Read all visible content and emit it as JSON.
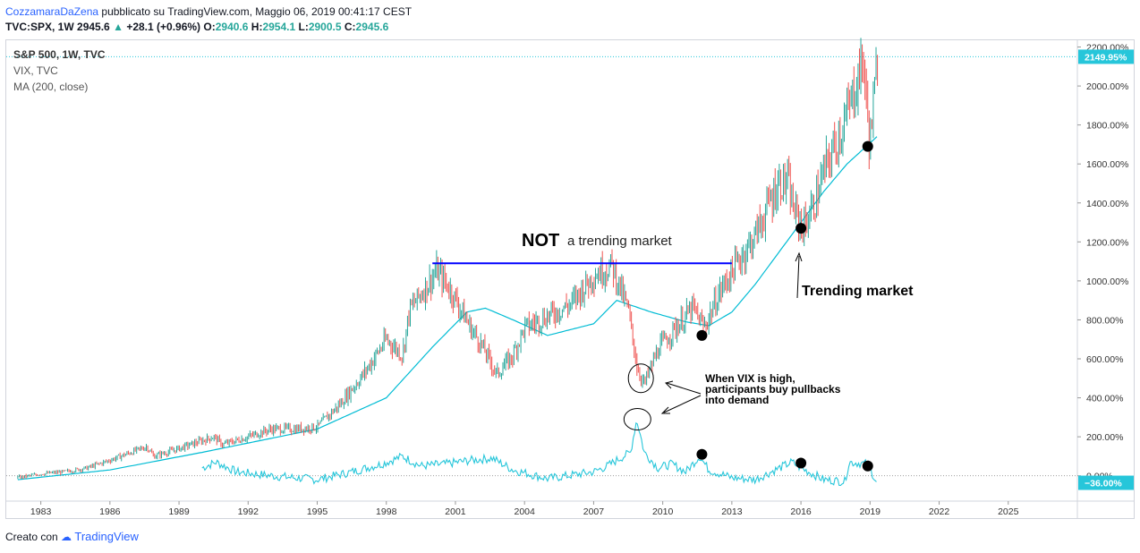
{
  "header": {
    "author": "CozzamaraDaZena",
    "published": "pubblicato su TradingView.com, Maggio 06, 2019 00:41:17 CEST",
    "symbol": "TVC:SPX, 1W",
    "last": "2945.6",
    "change": "+28.1 (+0.96%)",
    "o_label": "O:",
    "o": "2940.6",
    "h_label": "H:",
    "h": "2954.1",
    "l_label": "L:",
    "l": "2900.5",
    "c_label": "C:",
    "c": "2945.6"
  },
  "legend": {
    "line1": "S&P 500, 1W, TVC",
    "line2": "VIX, TVC",
    "line3": "MA (200, close)"
  },
  "footer": {
    "created_with": "Creato con",
    "brand": "TradingView"
  },
  "colors": {
    "candle_up": "#26a69a",
    "candle_down": "#ef5350",
    "ma": "#00bcd4",
    "vix": "#26c6da",
    "resistance": "#0000ff",
    "price_tag": "#26c6da"
  },
  "annotations": {
    "not_bold": "NOT",
    "not_rest": "a trending market",
    "trending": "Trending market",
    "vix_note": [
      "When VIX is high,",
      "participants buy pullbacks",
      "into demand"
    ]
  },
  "chart_data": {
    "type": "line",
    "title": "S&P 500, 1W, TVC",
    "x_range": [
      1981.5,
      2028.0
    ],
    "y_range": [
      -130,
      2230
    ],
    "y_axis_unit": "%",
    "y_ticks": [
      "2200.00%",
      "2000.00%",
      "1800.00%",
      "1600.00%",
      "1400.00%",
      "1200.00%",
      "1000.00%",
      "800.00%",
      "600.00%",
      "400.00%",
      "200.00%",
      "0.00%"
    ],
    "x_ticks": [
      "1983",
      "1986",
      "1989",
      "1992",
      "1995",
      "1998",
      "2001",
      "2004",
      "2007",
      "2010",
      "2013",
      "2016",
      "2019",
      "2022",
      "2025"
    ],
    "price_tags": [
      {
        "label": "2149.95%",
        "value": 2150
      },
      {
        "label": "−36.00%",
        "value": -36
      }
    ],
    "grid": false,
    "series": [
      {
        "name": "S&P 500, 1W, TVC",
        "x": [
          1982.0,
          1983.0,
          1984.0,
          1985.0,
          1986.0,
          1987.6,
          1987.9,
          1989.0,
          1990.5,
          1990.9,
          1992.0,
          1993.0,
          1994.0,
          1995.0,
          1996.0,
          1997.0,
          1998.0,
          1998.7,
          1999.0,
          2000.2,
          2000.8,
          2001.7,
          2002.0,
          2002.8,
          2003.5,
          2004.0,
          2005.0,
          2006.0,
          2007.0,
          2007.8,
          2008.5,
          2008.9,
          2009.2,
          2009.8,
          2010.5,
          2011.3,
          2011.8,
          2012.5,
          2013.0,
          2014.0,
          2015.0,
          2015.4,
          2015.7,
          2016.1,
          2016.6,
          2017.0,
          2018.0,
          2018.7,
          2018.98,
          2019.35
        ],
        "y": [
          -10,
          10,
          20,
          40,
          80,
          150,
          100,
          140,
          200,
          160,
          200,
          240,
          240,
          250,
          370,
          520,
          700,
          620,
          850,
          1050,
          950,
          750,
          700,
          520,
          620,
          760,
          820,
          880,
          1030,
          1080,
          850,
          550,
          470,
          650,
          750,
          860,
          760,
          950,
          1050,
          1230,
          1500,
          1510,
          1360,
          1270,
          1400,
          1560,
          1850,
          2140,
          1700,
          2150
        ]
      },
      {
        "name": "MA (200, close)",
        "x": [
          1982,
          1986,
          1990,
          1995,
          1998,
          2000,
          2001.5,
          2002.3,
          2003.5,
          2005.0,
          2007.0,
          2008.0,
          2009.5,
          2011.0,
          2012.0,
          2013.0,
          2014.0,
          2015.0,
          2016.0,
          2017.0,
          2018.0,
          2019.3
        ],
        "y": [
          -20,
          30,
          120,
          240,
          400,
          660,
          840,
          860,
          800,
          720,
          780,
          900,
          840,
          790,
          770,
          840,
          980,
          1140,
          1300,
          1460,
          1600,
          1740
        ]
      },
      {
        "name": "VIX, TVC",
        "x": [
          1990.0,
          1990.6,
          1991.5,
          1993.0,
          1995.0,
          1996.5,
          1997.8,
          1998.7,
          1999.5,
          2000.5,
          2001.7,
          2002.6,
          2003.5,
          2005.0,
          2007.0,
          2007.6,
          2008.0,
          2008.6,
          2008.87,
          2009.2,
          2009.8,
          2010.4,
          2011.0,
          2011.6,
          2012.0,
          2013.0,
          2014.0,
          2015.6,
          2016.0,
          2017.0,
          2017.9,
          2018.1,
          2018.9,
          2019.3
        ],
        "y": [
          40,
          70,
          20,
          0,
          -20,
          20,
          60,
          100,
          50,
          60,
          80,
          90,
          30,
          -15,
          20,
          50,
          80,
          120,
          290,
          120,
          40,
          60,
          20,
          100,
          30,
          -10,
          -20,
          70,
          40,
          -20,
          -30,
          70,
          60,
          -36
        ]
      }
    ],
    "resistance_line": {
      "x": [
        2000.0,
        2013.0
      ],
      "y": [
        1090,
        1090
      ]
    },
    "markers": [
      {
        "x": 2011.7,
        "y": 720
      },
      {
        "x": 2016.0,
        "y": 1270
      },
      {
        "x": 2018.9,
        "y": 1690
      },
      {
        "x": 2011.7,
        "y": 110
      },
      {
        "x": 2016.0,
        "y": 65
      },
      {
        "x": 2018.9,
        "y": 50
      }
    ],
    "circles": [
      {
        "x": 2009.05,
        "y": 500
      },
      {
        "x": 2008.9,
        "y": 290
      }
    ]
  }
}
